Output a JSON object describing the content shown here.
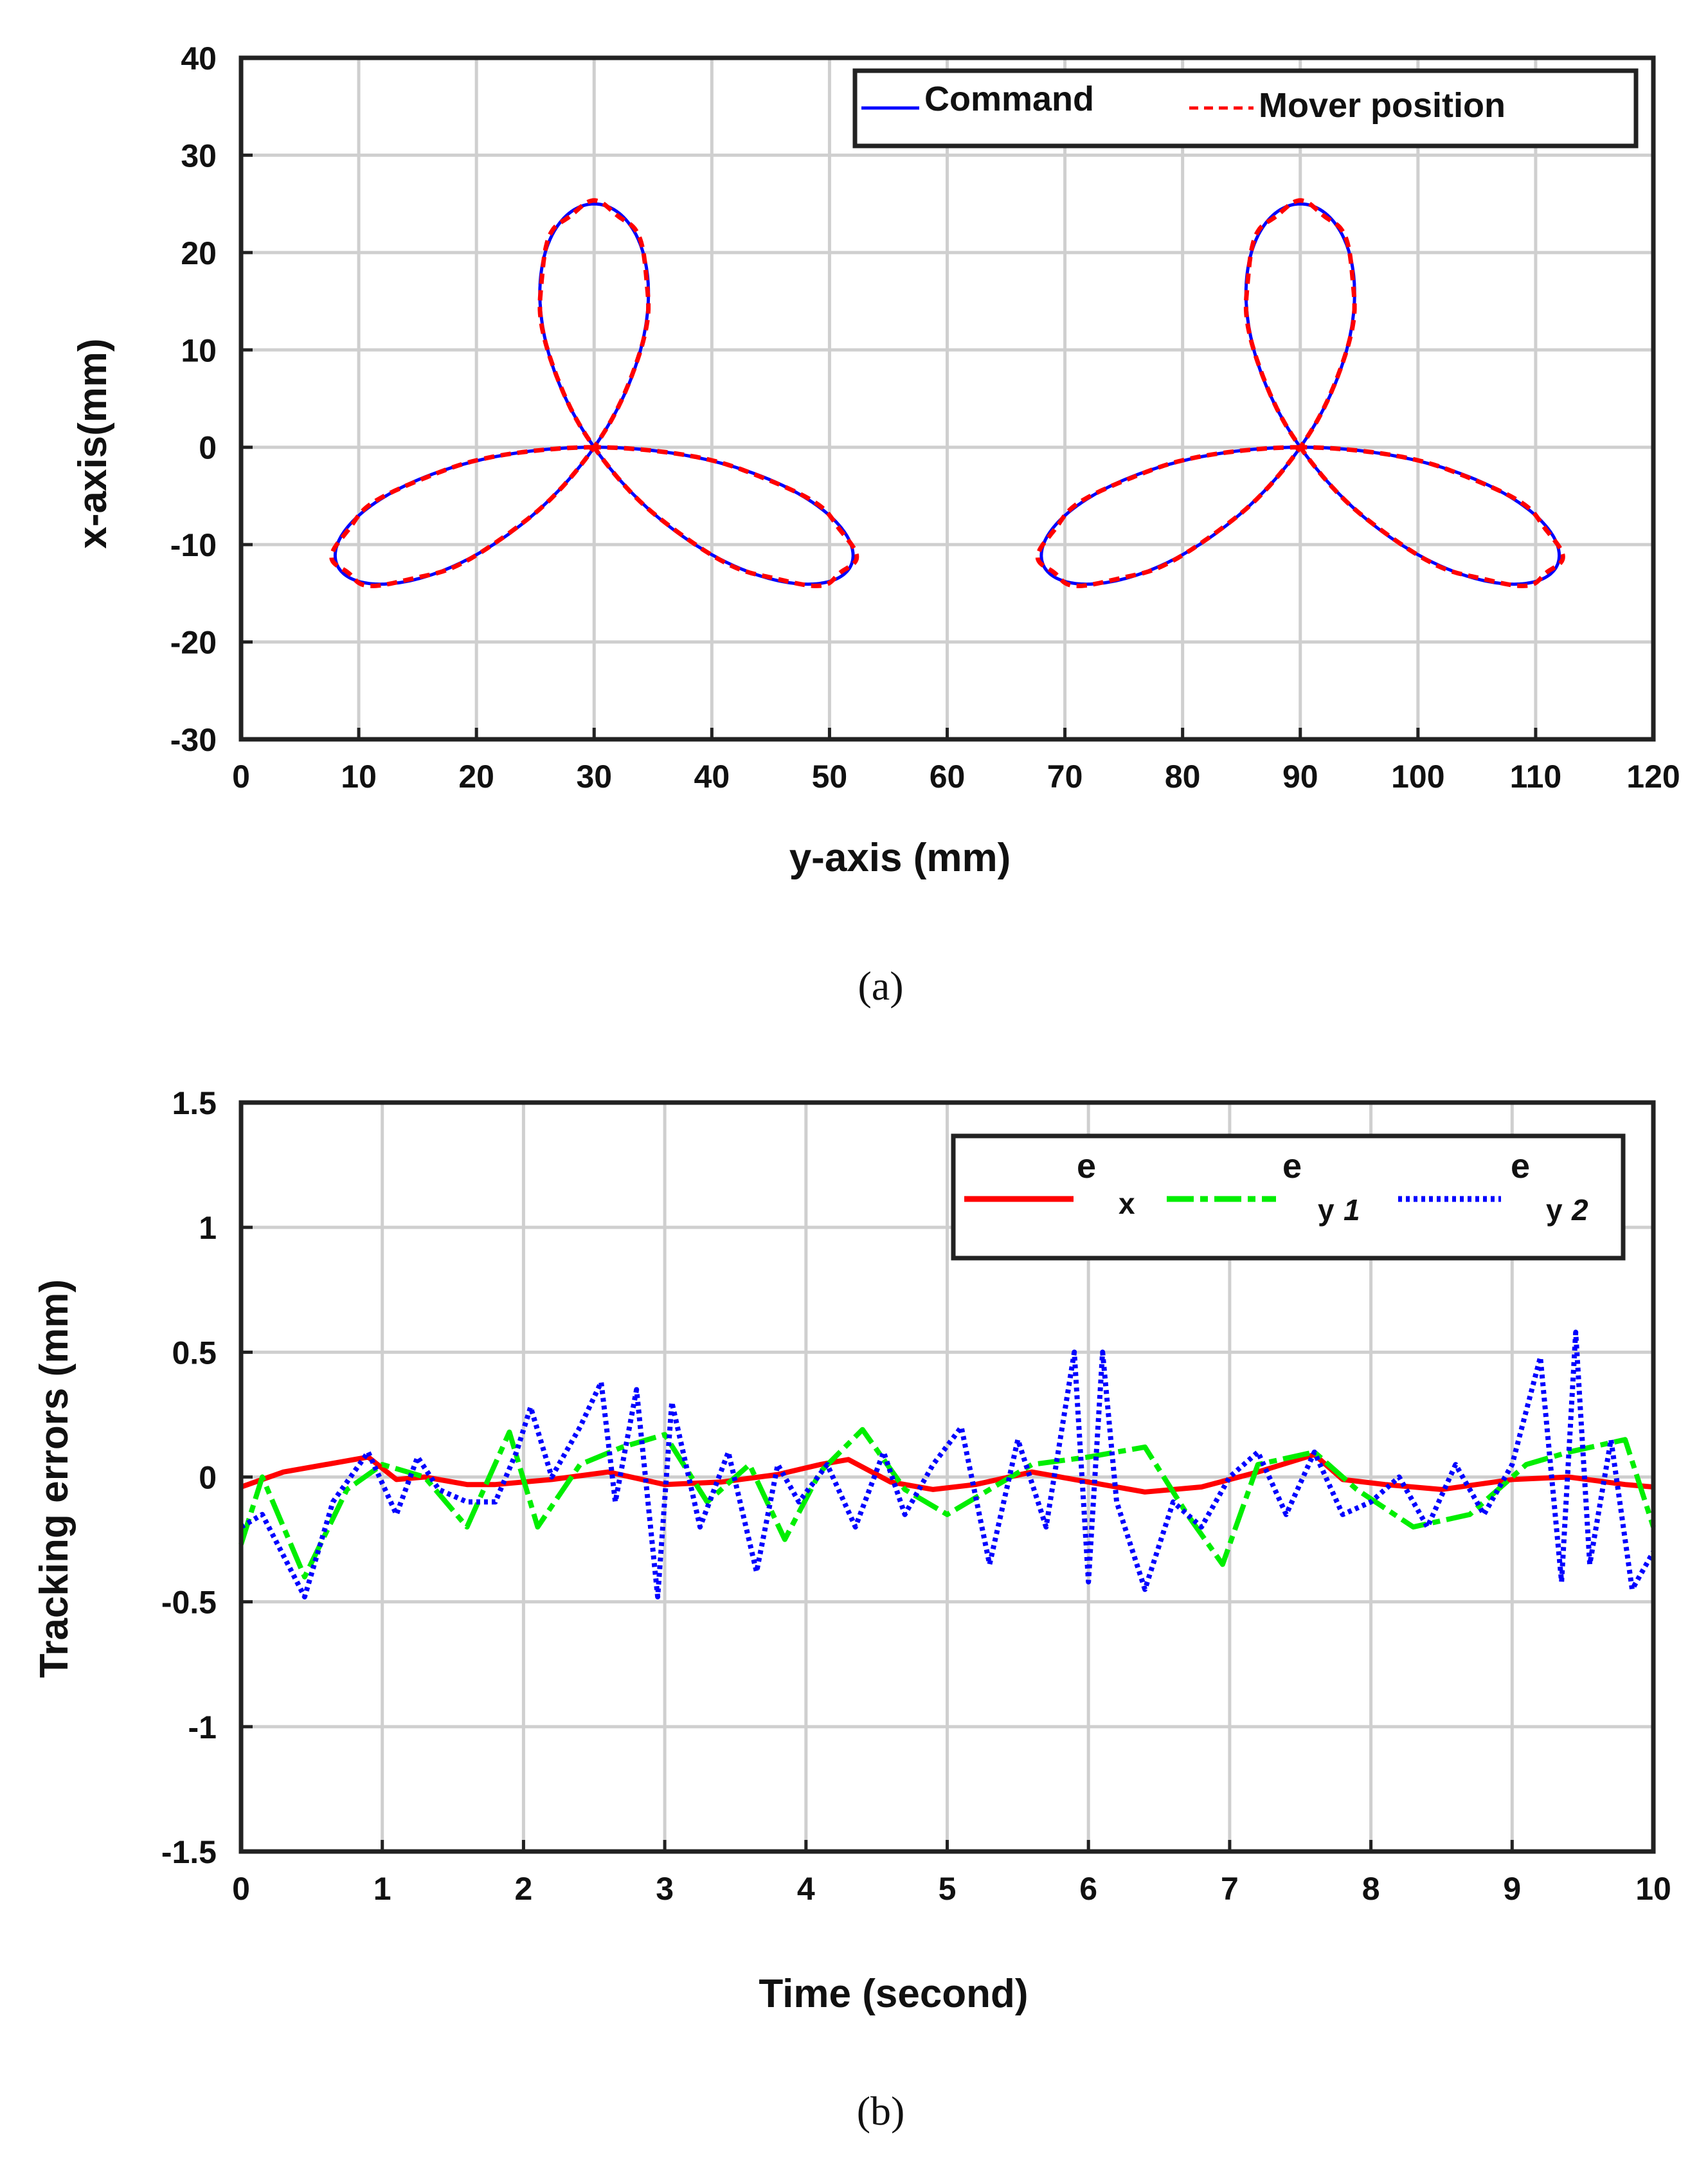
{
  "chart_data": [
    {
      "type": "line",
      "panel": "a",
      "caption": "(a)",
      "xlabel": "y-axis (mm)",
      "ylabel": "x-axis(mm)",
      "xlim": [
        0,
        120
      ],
      "ylim": [
        -30,
        40
      ],
      "xticks": [
        "0",
        "10",
        "20",
        "30",
        "40",
        "50",
        "60",
        "70",
        "80",
        "90",
        "100",
        "110",
        "120"
      ],
      "yticks": [
        "-30",
        "-20",
        "-10",
        "0",
        "10",
        "20",
        "30",
        "40"
      ],
      "grid": true,
      "legend_position": "top-right",
      "curve": "three-petal rose, radius 25 mm, two copies centered at (30,0) and (90,0)",
      "series": [
        {
          "name": "Command",
          "color": "#0000ff",
          "style": "solid",
          "centers": [
            [
              30,
              0
            ],
            [
              90,
              0
            ]
          ],
          "radius": 25
        },
        {
          "name": "Mover position",
          "color": "#ff0000",
          "style": "dashed",
          "centers": [
            [
              30,
              0
            ],
            [
              90,
              0
            ]
          ],
          "radius": 25
        }
      ]
    },
    {
      "type": "line",
      "panel": "b",
      "caption": "(b)",
      "xlabel": "Time (second)",
      "ylabel": "Tracking errors (mm)",
      "xlim": [
        0,
        10
      ],
      "ylim": [
        -1.5,
        1.5
      ],
      "xticks": [
        "0",
        "1",
        "2",
        "3",
        "4",
        "5",
        "6",
        "7",
        "8",
        "9",
        "10"
      ],
      "yticks": [
        "-1.5",
        "-1",
        "-0.5",
        "0",
        "0.5",
        "1",
        "1.5"
      ],
      "grid": true,
      "legend_position": "top-right",
      "series": [
        {
          "name": "e",
          "subscript": "x",
          "color": "#ff0000",
          "style": "solid",
          "x": [
            0,
            0.3,
            0.6,
            0.9,
            1.1,
            1.3,
            1.6,
            1.8,
            2.2,
            2.6,
            3.0,
            3.4,
            3.8,
            4.1,
            4.3,
            4.6,
            4.9,
            5.2,
            5.6,
            6.0,
            6.4,
            6.8,
            7.2,
            7.6,
            7.8,
            8.1,
            8.5,
            9.0,
            9.4,
            9.8,
            10
          ],
          "y": [
            -0.04,
            0.02,
            0.05,
            0.08,
            -0.01,
            0.0,
            -0.03,
            -0.03,
            -0.01,
            0.02,
            -0.03,
            -0.02,
            0.01,
            0.05,
            0.07,
            -0.02,
            -0.05,
            -0.03,
            0.02,
            -0.02,
            -0.06,
            -0.04,
            0.02,
            0.09,
            -0.01,
            -0.03,
            -0.05,
            -0.01,
            0.0,
            -0.03,
            -0.04
          ]
        },
        {
          "name": "e",
          "subscript": "y",
          "subscript2": "1",
          "color": "#00ee00",
          "style": "dashdot",
          "x": [
            0,
            0.15,
            0.45,
            0.75,
            1.0,
            1.3,
            1.6,
            1.9,
            2.1,
            2.4,
            2.7,
            3.0,
            3.3,
            3.6,
            3.85,
            4.1,
            4.4,
            4.7,
            5.0,
            5.3,
            5.6,
            6.0,
            6.4,
            6.7,
            6.95,
            7.2,
            7.6,
            7.9,
            8.3,
            8.7,
            9.1,
            9.4,
            9.8,
            10
          ],
          "y": [
            -0.27,
            0.0,
            -0.4,
            -0.05,
            0.05,
            0.0,
            -0.2,
            0.18,
            -0.2,
            0.05,
            0.12,
            0.17,
            -0.1,
            0.05,
            -0.25,
            0.02,
            0.19,
            -0.05,
            -0.15,
            -0.05,
            0.05,
            0.08,
            0.12,
            -0.15,
            -0.35,
            0.05,
            0.1,
            -0.05,
            -0.2,
            -0.15,
            0.05,
            0.1,
            0.15,
            -0.2
          ]
        },
        {
          "name": "e",
          "subscript": "y",
          "subscript2": "2",
          "color": "#0000ff",
          "style": "dotted",
          "x": [
            0,
            0.15,
            0.45,
            0.65,
            0.9,
            1.1,
            1.25,
            1.4,
            1.6,
            1.8,
            1.95,
            2.05,
            2.2,
            2.4,
            2.55,
            2.65,
            2.8,
            2.95,
            3.05,
            3.25,
            3.45,
            3.65,
            3.8,
            3.95,
            4.15,
            4.35,
            4.55,
            4.7,
            4.9,
            5.1,
            5.3,
            5.5,
            5.7,
            5.9,
            6.0,
            6.1,
            6.2,
            6.4,
            6.6,
            6.8,
            7.0,
            7.2,
            7.4,
            7.6,
            7.8,
            8.0,
            8.2,
            8.4,
            8.6,
            8.8,
            9.0,
            9.2,
            9.35,
            9.45,
            9.55,
            9.7,
            9.85,
            10
          ],
          "y": [
            -0.2,
            -0.15,
            -0.48,
            -0.1,
            0.1,
            -0.15,
            0.08,
            -0.05,
            -0.1,
            -0.1,
            0.1,
            0.28,
            0.0,
            0.2,
            0.38,
            -0.1,
            0.35,
            -0.48,
            0.3,
            -0.2,
            0.1,
            -0.38,
            0.05,
            -0.1,
            0.05,
            -0.2,
            0.1,
            -0.15,
            0.05,
            0.2,
            -0.35,
            0.15,
            -0.2,
            0.5,
            -0.42,
            0.5,
            -0.1,
            -0.45,
            -0.1,
            -0.2,
            0.0,
            0.1,
            -0.15,
            0.1,
            -0.15,
            -0.1,
            0.0,
            -0.2,
            0.05,
            -0.15,
            0.05,
            0.48,
            -0.42,
            0.58,
            -0.35,
            0.15,
            -0.45,
            -0.3
          ]
        }
      ]
    }
  ]
}
